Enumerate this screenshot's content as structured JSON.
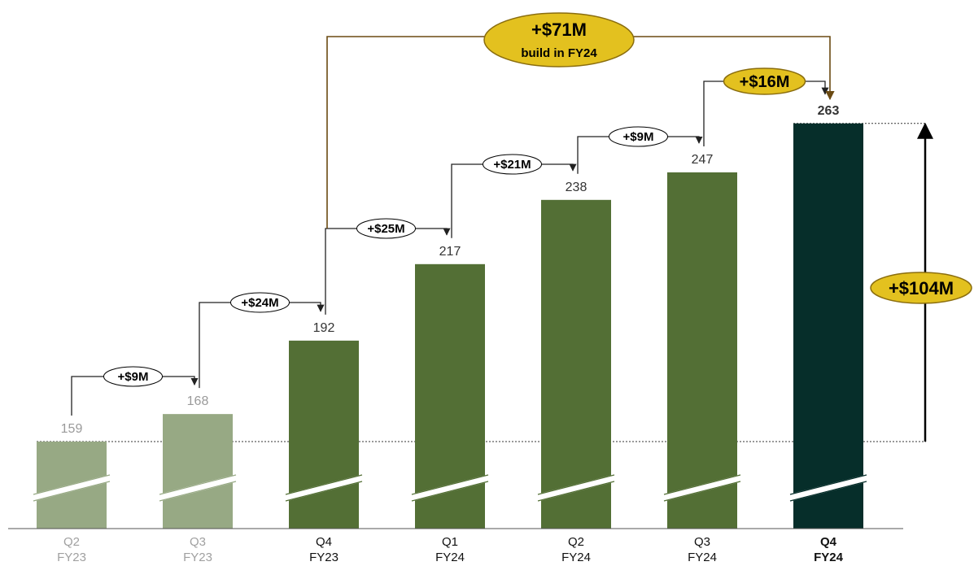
{
  "colors": {
    "bar_past": "#97a984",
    "bar_current": "#536f35",
    "bar_final": "#062e2a",
    "label_past": "#9a9a9a",
    "label_current": "#333333",
    "axis_text_past": "#a0a0a0",
    "axis_text_current": "#111111",
    "connector": "#222222",
    "summary_connector": "#6b4a12",
    "highlight_fill": "#e3c11f",
    "highlight_stroke": "#8a6d0e",
    "callout_fill": "#ffffff"
  },
  "chart_data": {
    "type": "bar",
    "title": "",
    "xlabel": "",
    "ylabel": "",
    "axis_break": true,
    "ylim": [
      130,
      290
    ],
    "categories": [
      {
        "quarter": "Q2",
        "year": "FY23"
      },
      {
        "quarter": "Q3",
        "year": "FY23"
      },
      {
        "quarter": "Q4",
        "year": "FY23"
      },
      {
        "quarter": "Q1",
        "year": "FY24"
      },
      {
        "quarter": "Q2",
        "year": "FY24"
      },
      {
        "quarter": "Q3",
        "year": "FY24"
      },
      {
        "quarter": "Q4",
        "year": "FY24"
      }
    ],
    "values": [
      159,
      168,
      192,
      217,
      238,
      247,
      263
    ],
    "value_labels": [
      "159",
      "168",
      "192",
      "217",
      "238",
      "247",
      "263"
    ],
    "bar_styles": [
      "past",
      "past",
      "current",
      "current",
      "current",
      "current",
      "final"
    ],
    "step_callouts": [
      {
        "from": 0,
        "to": 1,
        "text": "+$9M"
      },
      {
        "from": 1,
        "to": 2,
        "text": "+$24M"
      },
      {
        "from": 2,
        "to": 3,
        "text": "+$25M"
      },
      {
        "from": 3,
        "to": 4,
        "text": "+$21M"
      },
      {
        "from": 4,
        "to": 5,
        "text": "+$9M"
      },
      {
        "from": 5,
        "to": 6,
        "text": "+$16M",
        "highlight": true
      }
    ],
    "summary_callout": {
      "from": 2,
      "to": 6,
      "line1": "+$71M",
      "line2": "build in FY24"
    },
    "total_change": {
      "from": 0,
      "to": 6,
      "text": "+$104M"
    }
  }
}
